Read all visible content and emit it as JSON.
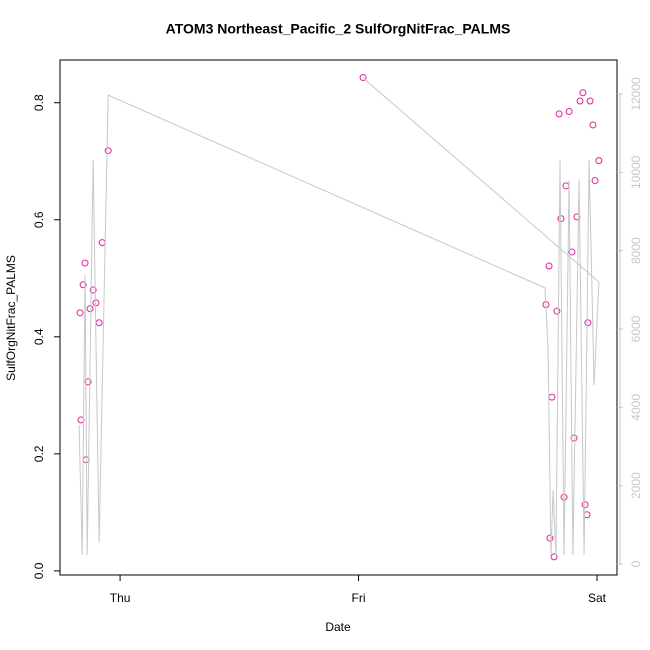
{
  "chart_data": {
    "type": "scatter",
    "title": "ATOM3 Northeast_Pacific_2 SulfOrgNitFrac_PALMS",
    "xlabel": "Date",
    "ylabel": "SulfOrgNitFrac_PALMS",
    "xlim": [
      -0.252,
      2.084
    ],
    "xticks": [
      {
        "value": 0,
        "label": "Thu"
      },
      {
        "value": 1,
        "label": "Fri"
      },
      {
        "value": 2,
        "label": "Sat"
      }
    ],
    "ylim": [
      -0.007,
      0.873
    ],
    "yticks": [
      {
        "value": 0,
        "label": "0.0"
      },
      0.2,
      0.4,
      0.6,
      0.8
    ],
    "y2lim": [
      -281,
      12868
    ],
    "y2ticks": [
      0,
      2000,
      4000,
      6000,
      8000,
      10000,
      12000
    ],
    "y2color": "#c8c8c8",
    "grid": false,
    "series": [
      {
        "color": "#e8209a",
        "x": [
          -0.168,
          -0.164,
          -0.155,
          -0.147,
          -0.143,
          -0.134,
          -0.126,
          -0.113,
          -0.101,
          -0.088,
          -0.075,
          -0.05,
          1.019,
          1.786,
          1.799,
          1.803,
          1.811,
          1.82,
          1.832,
          1.841,
          1.849,
          1.862,
          1.87,
          1.883,
          1.895,
          1.904,
          1.916,
          1.929,
          1.941,
          1.95,
          1.958,
          1.962,
          1.971,
          1.983,
          1.992,
          2.008
        ],
        "values": [
          0.441,
          0.258,
          0.489,
          0.526,
          0.19,
          0.323,
          0.448,
          0.48,
          0.458,
          0.424,
          0.561,
          0.718,
          0.843,
          0.455,
          0.521,
          0.056,
          0.297,
          0.024,
          0.444,
          0.781,
          0.602,
          0.126,
          0.658,
          0.785,
          0.545,
          0.227,
          0.605,
          0.803,
          0.817,
          0.113,
          0.096,
          0.424,
          0.803,
          0.762,
          0.667,
          0.701
        ]
      },
      {
        "color": "#c8c8c8",
        "axis": "y2",
        "x": [
          -0.172,
          -0.159,
          -0.147,
          -0.138,
          -0.113,
          -0.088,
          -0.05,
          1.782,
          1.795,
          1.807,
          1.816,
          1.828,
          1.845,
          1.862,
          1.883,
          1.899,
          1.925,
          1.946,
          1.967,
          1.988,
          2.008,
          1.019
        ],
        "values": [
          3550,
          230,
          7380,
          230,
          10310,
          540,
          11970,
          7050,
          5460,
          230,
          1890,
          230,
          10310,
          230,
          9800,
          230,
          9800,
          230,
          10310,
          4570,
          7200,
          12410
        ]
      }
    ]
  }
}
